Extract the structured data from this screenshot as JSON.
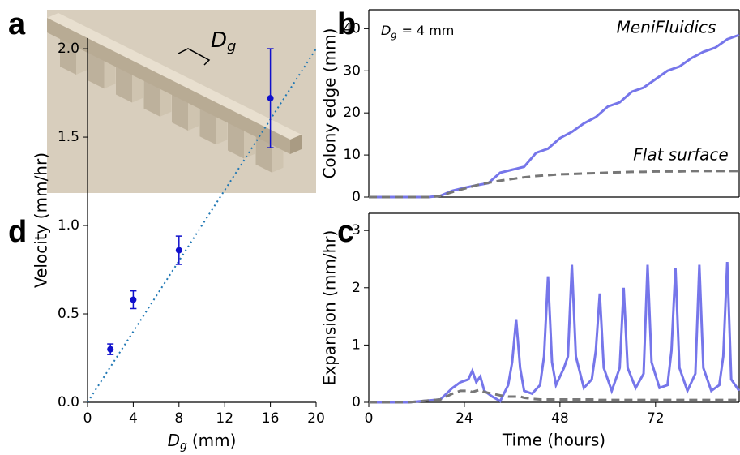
{
  "panel_labels": [
    "a",
    "b",
    "c",
    "d"
  ],
  "image_annotation": {
    "main": "D",
    "sub": "g"
  },
  "chart_data": [
    {
      "type": "line",
      "annotation": {
        "main": "D",
        "sub": "g",
        "rest": "= 4 mm"
      },
      "ylabel": "Colony edge (mm)",
      "xlim": [
        0,
        93
      ],
      "ylim": [
        0,
        44.5
      ],
      "yticks": [
        0,
        10,
        20,
        30,
        40
      ],
      "x": [
        0,
        3,
        6,
        9,
        12,
        15,
        18,
        21,
        24,
        27,
        30,
        33,
        36,
        39,
        42,
        45,
        48,
        51,
        54,
        57,
        60,
        63,
        66,
        69,
        72,
        75,
        78,
        81,
        84,
        87,
        90,
        93
      ],
      "series": [
        {
          "name": "MeniFluidics",
          "color": "#7676ea",
          "dashed": false,
          "values": [
            0,
            0,
            0,
            0,
            0,
            0,
            0.3,
            1.5,
            2.2,
            2.8,
            3.3,
            5.8,
            6.5,
            7.2,
            10.5,
            11.5,
            14,
            15.5,
            17.5,
            19,
            21.5,
            22.5,
            25,
            26,
            28,
            30,
            31,
            33,
            34.5,
            35.5,
            37.5,
            38.5
          ]
        },
        {
          "name": "Flat surface",
          "color": "#777777",
          "dashed": true,
          "values": [
            0,
            0,
            0,
            0,
            0,
            0,
            0.3,
            1.2,
            2.0,
            2.8,
            3.4,
            3.9,
            4.3,
            4.7,
            5.0,
            5.2,
            5.4,
            5.5,
            5.6,
            5.7,
            5.8,
            5.9,
            6.0,
            6.0,
            6.1,
            6.1,
            6.1,
            6.2,
            6.2,
            6.2,
            6.2,
            6.2
          ]
        }
      ]
    },
    {
      "type": "line",
      "ylabel": "Expansion (mm/hr)",
      "xlabel": "Time (hours)",
      "xlim": [
        0,
        93
      ],
      "xticks": [
        0,
        24,
        48,
        72
      ],
      "ylim": [
        0,
        3.3
      ],
      "yticks": [
        0,
        1,
        2,
        3
      ],
      "x": [
        0,
        10,
        18,
        21,
        23,
        25,
        26,
        27,
        28,
        29,
        31,
        33,
        35,
        36,
        37,
        38,
        39,
        41,
        43,
        44,
        45,
        46,
        47,
        49,
        50,
        51,
        52,
        54,
        56,
        57,
        58,
        59,
        61,
        63,
        64,
        65,
        67,
        69,
        70,
        71,
        73,
        75,
        76,
        77,
        78,
        80,
        82,
        83,
        84,
        86,
        88,
        89,
        90,
        91,
        93
      ],
      "series": [
        {
          "color": "#7676ea",
          "dashed": false,
          "values": [
            0,
            0,
            0.05,
            0.25,
            0.35,
            0.4,
            0.55,
            0.35,
            0.45,
            0.2,
            0.1,
            0.02,
            0.3,
            0.7,
            1.45,
            0.6,
            0.2,
            0.15,
            0.3,
            0.8,
            2.2,
            0.7,
            0.3,
            0.6,
            0.8,
            2.4,
            0.8,
            0.25,
            0.4,
            0.9,
            1.9,
            0.6,
            0.2,
            0.6,
            2.0,
            0.6,
            0.25,
            0.5,
            2.4,
            0.7,
            0.25,
            0.3,
            0.9,
            2.35,
            0.6,
            0.2,
            0.5,
            2.4,
            0.6,
            0.2,
            0.3,
            0.8,
            2.45,
            0.4,
            0.2
          ]
        },
        {
          "color": "#777777",
          "dashed": true,
          "values": [
            0,
            0,
            0.05,
            0.15,
            0.2,
            0.2,
            0.18,
            0.2,
            0.22,
            0.18,
            0.15,
            0.12,
            0.1,
            0.1,
            0.1,
            0.1,
            0.08,
            0.06,
            0.05,
            0.05,
            0.05,
            0.05,
            0.05,
            0.05,
            0.05,
            0.05,
            0.05,
            0.05,
            0.05,
            0.05,
            0.04,
            0.04,
            0.04,
            0.04,
            0.04,
            0.04,
            0.04,
            0.04,
            0.04,
            0.04,
            0.04,
            0.04,
            0.04,
            0.04,
            0.04,
            0.04,
            0.04,
            0.04,
            0.04,
            0.04,
            0.04,
            0.04,
            0.04,
            0.04,
            0.04
          ]
        }
      ]
    },
    {
      "type": "scatter",
      "ylabel": "Velocity (mm/hr)",
      "xlabel": {
        "main": "D",
        "sub": "g",
        "rest": "(mm)"
      },
      "xlim": [
        0,
        20
      ],
      "xticks": [
        0,
        4,
        8,
        12,
        16,
        20
      ],
      "ylim": [
        0,
        2.06
      ],
      "yticks": [
        {
          "value": 0,
          "label": "0.0"
        },
        0.5,
        {
          "value": 1,
          "label": "1.0"
        },
        1.5,
        {
          "value": 2,
          "label": "2.0"
        }
      ],
      "x": [
        2,
        4,
        8,
        16
      ],
      "values": [
        0.3,
        0.58,
        0.86,
        1.72
      ],
      "errors": [
        0.03,
        0.05,
        0.08,
        0.28
      ],
      "color": "#1010cc",
      "fit": {
        "x": [
          0,
          20
        ],
        "values": [
          0,
          2.0
        ],
        "color": "#1f77b4"
      }
    }
  ]
}
